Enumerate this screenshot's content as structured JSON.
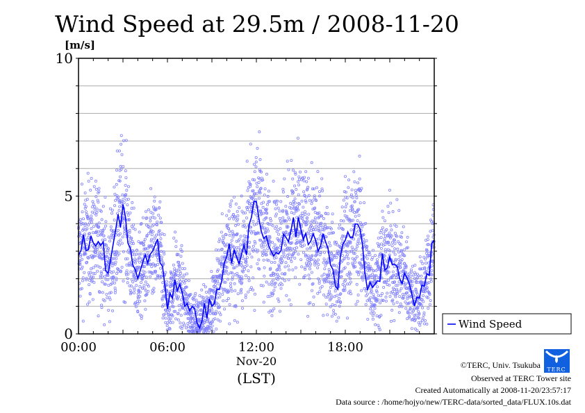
{
  "chart_data": {
    "type": "line",
    "title": "Wind Speed at 29.5m / 2008-11-20",
    "ylabel": "[m/s]",
    "xlabel_date": "Nov-20",
    "xlabel_zone": "(LST)",
    "ylim": [
      0,
      10
    ],
    "xlim_hours": [
      0,
      24
    ],
    "y_ticks": [
      "0",
      "5",
      "10"
    ],
    "x_ticks": [
      {
        "hour": 0,
        "label": "00:00"
      },
      {
        "hour": 6,
        "label": "06:00"
      },
      {
        "hour": 12,
        "label": "12:00"
      },
      {
        "hour": 18,
        "label": "18:00"
      }
    ],
    "grid": true,
    "legend": {
      "position": "right",
      "entries": [
        "Wind Speed"
      ]
    },
    "series": [
      {
        "name": "Wind Speed",
        "color": "#0000ff",
        "scatter_color": "#8080ff",
        "x_hours": [
          0,
          0.5,
          1,
          1.5,
          2,
          2.5,
          3,
          3.5,
          4,
          4.5,
          5,
          5.5,
          6,
          6.5,
          7,
          7.5,
          8,
          8.5,
          9,
          9.5,
          10,
          10.5,
          11,
          11.5,
          12,
          12.5,
          13,
          13.5,
          14,
          14.5,
          15,
          15.5,
          16,
          16.5,
          17,
          17.5,
          18,
          18.5,
          19,
          19.5,
          20,
          20.5,
          21,
          21.5,
          22,
          22.5,
          23,
          23.5,
          24
        ],
        "values": [
          2.85,
          3.4,
          3.3,
          3.4,
          2.2,
          3.5,
          4.7,
          3.0,
          2.0,
          2.5,
          3.0,
          3.0,
          0.9,
          2.0,
          1.5,
          0.8,
          0.4,
          0.8,
          1.0,
          2.0,
          2.8,
          3.0,
          2.9,
          3.5,
          4.8,
          3.8,
          3.0,
          3.3,
          3.5,
          4.0,
          3.8,
          3.5,
          3.4,
          3.3,
          2.5,
          2.0,
          3.4,
          3.5,
          3.8,
          2.0,
          1.8,
          2.5,
          2.8,
          2.4,
          2.2,
          1.4,
          1.3,
          2.0,
          3.4
        ]
      }
    ]
  },
  "credits": {
    "copyright": "©TERC, Univ. Tsukuba",
    "observed": "Observed at TERC Tower site",
    "created": "Created Automatically at 2008-11-20/23:57:17",
    "source": "Data source : /home/hojyo/new/TERC-data/sorted_data/FLUX.10s.dat",
    "logo_text": "TERC"
  }
}
